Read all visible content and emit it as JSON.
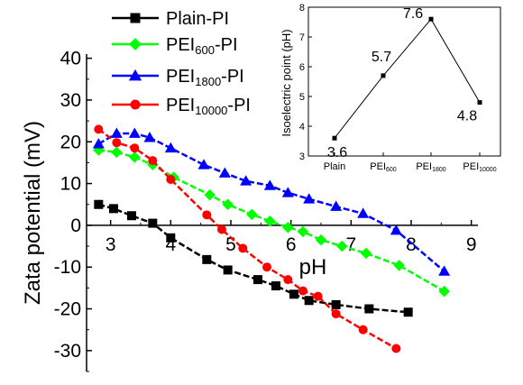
{
  "chart_data": [
    {
      "type": "line",
      "xlabel": "pH",
      "ylabel": "Zata potential (mV)",
      "xlim": [
        2.6,
        9.5
      ],
      "ylim": [
        -35,
        41
      ],
      "xticks": [
        "3",
        "4",
        "5",
        "6",
        "7",
        "8",
        "9"
      ],
      "yticks": [
        "40",
        "30",
        "20",
        "10",
        "0",
        "-10",
        "-20",
        "-30"
      ],
      "series": [
        {
          "name": "Plain-PI",
          "label_main": "Plain-PI",
          "label_sub": "",
          "label_tail": "",
          "color": "#000000",
          "marker": "square",
          "x": [
            2.8,
            3.05,
            3.35,
            3.7,
            4.0,
            4.6,
            4.95,
            5.45,
            5.75,
            6.05,
            6.3,
            6.75,
            7.3,
            7.95
          ],
          "y": [
            5,
            4,
            2.3,
            0.5,
            -3,
            -8.2,
            -10.7,
            -13,
            -14.5,
            -16.5,
            -18,
            -19,
            -20,
            -20.8
          ]
        },
        {
          "name": "PEI600-PI",
          "label_main": "PEI",
          "label_sub": "600",
          "label_tail": "-PI",
          "color": "#00ff00",
          "marker": "diamond",
          "x": [
            2.8,
            3.1,
            3.4,
            3.7,
            4.05,
            4.65,
            4.95,
            5.35,
            5.65,
            5.95,
            6.2,
            6.5,
            6.85,
            7.25,
            7.8,
            8.55
          ],
          "y": [
            18,
            17.5,
            16.3,
            14.5,
            11.5,
            7.3,
            5,
            2.6,
            1,
            -0.5,
            -1.5,
            -3.5,
            -5,
            -6.7,
            -9.6,
            -15.8
          ]
        },
        {
          "name": "PEI1800-PI",
          "label_main": "PEI",
          "label_sub": "1800",
          "label_tail": "-PI",
          "color": "#0000ff",
          "marker": "triangle",
          "x": [
            2.8,
            3.1,
            3.4,
            3.65,
            4.0,
            4.55,
            4.9,
            5.25,
            5.65,
            5.95,
            6.3,
            6.75,
            7.2,
            7.75,
            8.55
          ],
          "y": [
            19.5,
            22,
            22,
            21,
            18.5,
            14.5,
            12.5,
            10.6,
            9.5,
            7.8,
            6.3,
            4.5,
            2.8,
            -1.2,
            -11
          ]
        },
        {
          "name": "PEI10000-PI",
          "label_main": "PEI",
          "label_sub": "10000",
          "label_tail": "-PI",
          "color": "#ff0000",
          "marker": "circle",
          "x": [
            2.8,
            3.1,
            3.4,
            3.7,
            4.0,
            4.6,
            4.85,
            5.2,
            5.6,
            5.95,
            6.2,
            6.45,
            6.75,
            7.2,
            7.75
          ],
          "y": [
            23,
            19.8,
            18.5,
            15.5,
            11,
            2.5,
            -1,
            -5.5,
            -10,
            -13,
            -15.7,
            -17,
            -21.2,
            -25,
            -29.5
          ]
        }
      ]
    },
    {
      "type": "line",
      "xlabel": "",
      "ylabel": "Isoelectric point (pH)",
      "ylim": [
        3,
        8
      ],
      "yticks": [
        "3",
        "4",
        "5",
        "6",
        "7",
        "8"
      ],
      "categories": [
        {
          "main": "Plain",
          "sub": ""
        },
        {
          "main": "PEI",
          "sub": "600"
        },
        {
          "main": "PEI",
          "sub": "1800"
        },
        {
          "main": "PEI",
          "sub": "10000"
        }
      ],
      "values": [
        3.6,
        5.7,
        7.6,
        4.8
      ],
      "value_labels": [
        "3.6",
        "5.7",
        "7.6",
        "4.8"
      ],
      "color": "#000000",
      "marker": "square"
    }
  ]
}
